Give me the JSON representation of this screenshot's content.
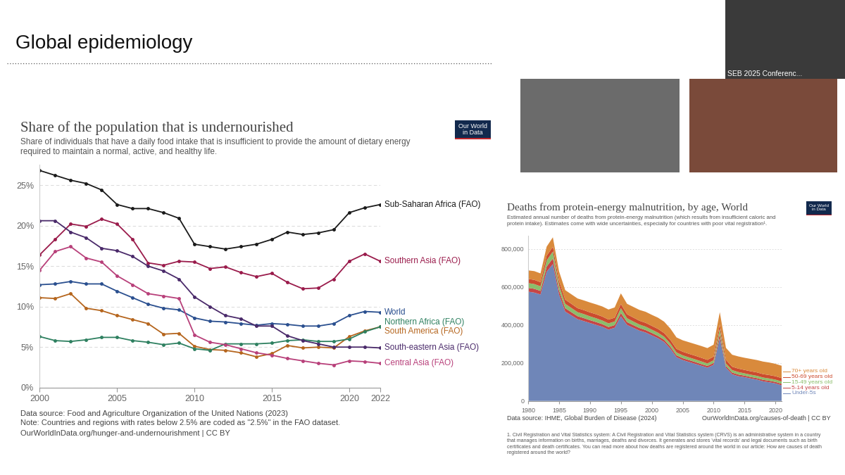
{
  "slide": {
    "title": "Global epidemiology",
    "video_caption": "SEB 2025 Conferenc..."
  },
  "chart_data": [
    {
      "type": "line",
      "title": "Share of the population that is undernourished",
      "subtitle": "Share of individuals that have a daily food intake that is insufficient to provide the amount of dietary energy required to maintain a normal, active, and healthy life.",
      "logo": "Our World in Data",
      "x": [
        2000,
        2001,
        2002,
        2003,
        2004,
        2005,
        2006,
        2007,
        2008,
        2009,
        2010,
        2011,
        2012,
        2013,
        2014,
        2015,
        2016,
        2017,
        2018,
        2019,
        2020,
        2021,
        2022
      ],
      "xlim": [
        2000,
        2022
      ],
      "xticks": [
        2000,
        2005,
        2010,
        2015,
        2020,
        2022
      ],
      "ylim": [
        0,
        27.5
      ],
      "yticks": [
        {
          "value": 0,
          "label": "0%"
        },
        {
          "value": 5,
          "label": "5%"
        },
        {
          "value": 10,
          "label": "10%"
        },
        {
          "value": 15,
          "label": "15%"
        },
        {
          "value": 20,
          "label": "20%"
        },
        {
          "value": 25,
          "label": "25%"
        }
      ],
      "grid": true,
      "marker": "circle",
      "series": [
        {
          "name": "Sub-Saharan Africa (FAO)",
          "color": "#1a1a1a",
          "values": [
            26.8,
            26.2,
            25.6,
            25.2,
            24.4,
            22.6,
            22.1,
            22.1,
            21.6,
            20.9,
            17.7,
            17.4,
            17.1,
            17.4,
            17.7,
            18.3,
            19.2,
            18.9,
            19.1,
            19.5,
            21.6,
            22.2,
            22.6
          ]
        },
        {
          "name": "Southern Asia (FAO)",
          "color": "#9a1b4b",
          "values": [
            16.4,
            18.3,
            20.2,
            19.9,
            20.8,
            20.2,
            18.3,
            15.4,
            15.1,
            15.6,
            15.5,
            14.7,
            14.9,
            14.2,
            13.7,
            14.1,
            13.0,
            12.2,
            12.3,
            13.4,
            15.6,
            16.5,
            15.6
          ]
        },
        {
          "name": "World",
          "color": "#2a4f8f",
          "values": [
            12.7,
            12.8,
            13.1,
            12.8,
            12.8,
            11.9,
            11.1,
            10.3,
            9.8,
            9.6,
            8.6,
            8.2,
            8.1,
            7.9,
            7.7,
            7.9,
            7.8,
            7.6,
            7.6,
            7.9,
            8.9,
            9.4,
            9.3
          ]
        },
        {
          "name": "South America (FAO)",
          "color": "#b5651d",
          "values": [
            11.1,
            11.0,
            11.6,
            9.8,
            9.5,
            8.9,
            8.4,
            7.9,
            6.6,
            6.7,
            5.1,
            4.7,
            4.6,
            4.3,
            3.8,
            4.2,
            5.2,
            4.9,
            5.0,
            4.9,
            6.3,
            7.0,
            7.5
          ]
        },
        {
          "name": "Northern Africa (FAO)",
          "color": "#2e8060",
          "values": [
            6.3,
            5.8,
            5.7,
            5.9,
            6.2,
            6.2,
            5.8,
            5.6,
            5.3,
            5.5,
            4.8,
            4.6,
            5.4,
            5.4,
            5.4,
            5.5,
            5.8,
            5.9,
            5.7,
            5.7,
            6.0,
            6.9,
            7.5
          ]
        },
        {
          "name": "South-eastern Asia (FAO)",
          "color": "#4a2a6a",
          "values": [
            20.6,
            20.6,
            19.2,
            18.5,
            17.2,
            16.9,
            16.2,
            15.0,
            14.4,
            13.4,
            11.2,
            10.0,
            8.9,
            8.5,
            7.6,
            7.6,
            6.4,
            5.8,
            5.4,
            5.0,
            5.0,
            5.0,
            4.9
          ]
        },
        {
          "name": "Central Asia (FAO)",
          "color": "#b8407a",
          "values": [
            14.5,
            16.8,
            17.4,
            16.0,
            15.5,
            13.8,
            12.7,
            11.6,
            11.3,
            11.0,
            6.5,
            5.6,
            5.3,
            4.8,
            4.3,
            4.0,
            3.6,
            3.3,
            3.0,
            2.8,
            3.3,
            3.2,
            3.0
          ]
        }
      ],
      "source": "Data source: Food and Agriculture Organization of the United Nations (2023)",
      "note": "Note: Countries and regions with rates below 2.5% are coded as \"2.5%\" in the FAO dataset.",
      "url": "OurWorldInData.org/hunger-and-undernourishment | CC BY"
    },
    {
      "type": "area",
      "stacked": true,
      "title": "Deaths from protein-energy malnutrition, by age, World",
      "subtitle": "Estimated annual number of deaths from protein-energy malnutrition (which results from insufficient caloric and protein intake). Estimates come with wide uncertainties, especially for countries with poor vital registration¹.",
      "logo": "Our World in Data",
      "x": [
        1980,
        1981,
        1982,
        1983,
        1984,
        1985,
        1986,
        1987,
        1988,
        1989,
        1990,
        1991,
        1992,
        1993,
        1994,
        1995,
        1996,
        1997,
        1998,
        1999,
        2000,
        2001,
        2002,
        2003,
        2004,
        2005,
        2006,
        2007,
        2008,
        2009,
        2010,
        2011,
        2012,
        2013,
        2014,
        2015,
        2016,
        2017,
        2018,
        2019,
        2020,
        2021
      ],
      "xlim": [
        1980,
        2021
      ],
      "xticks": [
        1980,
        1985,
        1990,
        1995,
        2000,
        2005,
        2010,
        2015,
        2020
      ],
      "ylim": [
        0,
        870000
      ],
      "yticks": [
        0,
        {
          "value": 200000,
          "label": "200,000"
        },
        {
          "value": 400000,
          "label": "400,000"
        },
        {
          "value": 600000,
          "label": "600,000"
        },
        {
          "value": 800000,
          "label": "800,000"
        }
      ],
      "grid": true,
      "series": [
        {
          "name": "Under-5s",
          "color": "#6f86b8",
          "values": [
            575000,
            570000,
            560000,
            680000,
            720000,
            560000,
            470000,
            450000,
            430000,
            420000,
            410000,
            400000,
            390000,
            375000,
            385000,
            445000,
            400000,
            385000,
            370000,
            360000,
            345000,
            330000,
            310000,
            275000,
            230000,
            215000,
            205000,
            195000,
            185000,
            175000,
            190000,
            330000,
            175000,
            140000,
            130000,
            125000,
            118000,
            112000,
            103000,
            98000,
            92000,
            82000
          ]
        },
        {
          "name": "5-14 years old",
          "color": "#c64545",
          "values": [
            20000,
            20000,
            19000,
            27000,
            30000,
            22000,
            18000,
            17000,
            16000,
            16000,
            15000,
            15000,
            14000,
            14000,
            14000,
            18000,
            15000,
            14000,
            14000,
            13000,
            13000,
            12000,
            12000,
            11000,
            10000,
            10000,
            10000,
            10000,
            9000,
            9000,
            10000,
            22000,
            9000,
            9000,
            9000,
            8000,
            8000,
            8000,
            8000,
            8000,
            8000,
            8000
          ]
        },
        {
          "name": "15-49 years old",
          "color": "#8bbd6b",
          "values": [
            25000,
            25000,
            24000,
            33000,
            36000,
            27000,
            23000,
            22000,
            21000,
            21000,
            20000,
            20000,
            19000,
            19000,
            19000,
            25000,
            20000,
            19000,
            18000,
            18000,
            17000,
            17000,
            16000,
            16000,
            15000,
            15000,
            14000,
            14000,
            14000,
            13000,
            14000,
            28000,
            13000,
            13000,
            13000,
            12000,
            12000,
            12000,
            12000,
            12000,
            12000,
            12000
          ]
        },
        {
          "name": "50-69 years old",
          "color": "#cc4b2e",
          "values": [
            22000,
            22000,
            22000,
            24000,
            25000,
            23000,
            22000,
            22000,
            21000,
            21000,
            21000,
            21000,
            21000,
            20000,
            20000,
            22000,
            21000,
            21000,
            20000,
            20000,
            20000,
            20000,
            19000,
            19000,
            19000,
            19000,
            19000,
            19000,
            19000,
            19000,
            19000,
            22000,
            19000,
            18000,
            18000,
            18000,
            18000,
            18000,
            18000,
            18000,
            18000,
            18000
          ]
        },
        {
          "name": "70+ years old",
          "color": "#d98a3c",
          "values": [
            45000,
            46000,
            46000,
            48000,
            50000,
            50000,
            50000,
            50000,
            51000,
            51000,
            52000,
            52000,
            53000,
            53000,
            54000,
            56000,
            55000,
            56000,
            57000,
            58000,
            58000,
            59000,
            60000,
            60000,
            60000,
            60000,
            61000,
            61000,
            62000,
            62000,
            63000,
            65000,
            63000,
            63000,
            64000,
            64000,
            65000,
            65000,
            66000,
            66000,
            65000,
            65000
          ]
        }
      ],
      "source": "Data source: IHME, Global Burden of Disease (2024)",
      "url": "OurWorldInData.org/causes-of-death | CC BY",
      "footnote": "1. Civil Registration and Vital Statistics system: A Civil Registration and Vital Statistics system (CRVS) is an administrative system in a country that manages information on births, marriages, deaths and divorces. It generates and stores 'vital records' and legal documents such as birth certificates and death certificates. You can read more about how deaths are registered around the world in our article: How are causes of death registered around the world?"
    }
  ]
}
